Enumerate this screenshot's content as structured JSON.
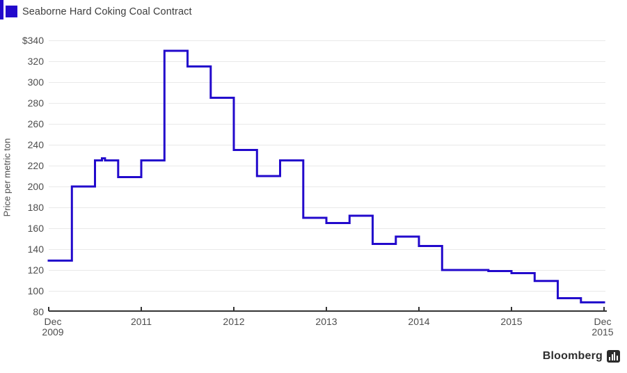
{
  "legend": {
    "label": "Seaborne Hard Coking Coal Contract",
    "swatch_color": "#2209cc"
  },
  "branding": {
    "wordmark": "Bloomberg",
    "logo_icon": "bloomberg-bars-icon"
  },
  "chart_data": {
    "type": "line",
    "step": true,
    "title": "Seaborne Hard Coking Coal Contract",
    "ylabel": "Price per metric ton",
    "currency_prefix": "$",
    "ylim": [
      80,
      340
    ],
    "y_ticks": [
      340,
      320,
      300,
      280,
      260,
      240,
      220,
      200,
      180,
      160,
      140,
      120,
      100,
      80
    ],
    "xlim_months": [
      0,
      72
    ],
    "x_ticks": [
      {
        "label": "Dec\n2009",
        "month": 0
      },
      {
        "label": "2011",
        "month": 12
      },
      {
        "label": "2012",
        "month": 24
      },
      {
        "label": "2013",
        "month": 36
      },
      {
        "label": "2014",
        "month": 48
      },
      {
        "label": "2015",
        "month": 60
      },
      {
        "label": "Dec\n2015",
        "month": 72
      }
    ],
    "grid": {
      "horizontal": true,
      "color": "#e9e9e9"
    },
    "axis_color": "#333333",
    "label_color": "#4d4d4d",
    "legend_position": "top-left",
    "series": [
      {
        "name": "Seaborne Hard Coking Coal Contract",
        "color": "#2209cc",
        "unit": "USD per metric ton",
        "points": [
          {
            "month": 0,
            "value": 129
          },
          {
            "month": 3,
            "value": 200
          },
          {
            "month": 6,
            "value": 225
          },
          {
            "month": 6.9,
            "value": 227
          },
          {
            "month": 7.3,
            "value": 225
          },
          {
            "month": 9,
            "value": 209
          },
          {
            "month": 12,
            "value": 225
          },
          {
            "month": 15,
            "value": 330
          },
          {
            "month": 18,
            "value": 315
          },
          {
            "month": 21,
            "value": 285
          },
          {
            "month": 24,
            "value": 235
          },
          {
            "month": 27,
            "value": 210
          },
          {
            "month": 30,
            "value": 225
          },
          {
            "month": 33,
            "value": 170
          },
          {
            "month": 36,
            "value": 165
          },
          {
            "month": 39,
            "value": 172
          },
          {
            "month": 42,
            "value": 145
          },
          {
            "month": 45,
            "value": 152
          },
          {
            "month": 48,
            "value": 143
          },
          {
            "month": 51,
            "value": 120
          },
          {
            "month": 57,
            "value": 119
          },
          {
            "month": 60,
            "value": 117
          },
          {
            "month": 63,
            "value": 109.5
          },
          {
            "month": 66,
            "value": 93
          },
          {
            "month": 69,
            "value": 89
          },
          {
            "month": 72,
            "value": 89
          }
        ]
      }
    ]
  }
}
